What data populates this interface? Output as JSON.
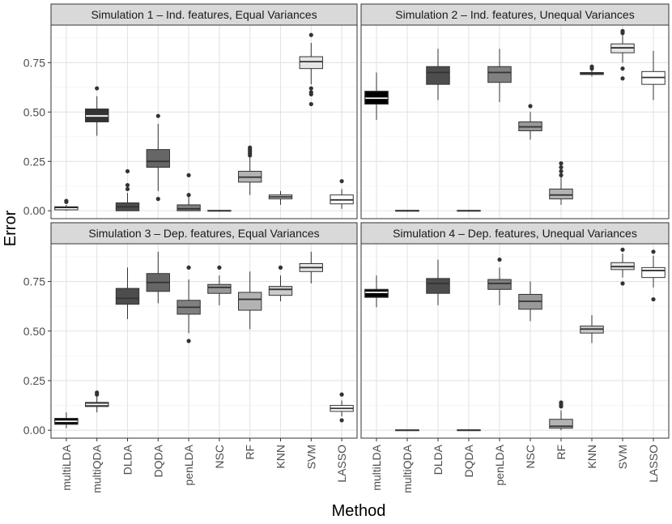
{
  "chart_data": {
    "type": "boxplot",
    "xlabel": "Method",
    "ylabel": "Error",
    "ylim": [
      -0.04,
      0.94
    ],
    "yticks": [
      0.0,
      0.25,
      0.5,
      0.75
    ],
    "ytick_labels": [
      "0.00",
      "0.25",
      "0.50",
      "0.75"
    ],
    "categories": [
      "multiLDA",
      "multiQDA",
      "DLDA",
      "DQDA",
      "penLDA",
      "NSC",
      "RF",
      "KNN",
      "SVM",
      "LASSO"
    ],
    "fills": [
      "#000000",
      "#333333",
      "#4d4d4d",
      "#666666",
      "#808080",
      "#999999",
      "#b3b3b3",
      "#cccccc",
      "#e6e6e6",
      "#ffffff"
    ],
    "panels": [
      {
        "title": "Simulation 1 – Ind. features, Equal Variances",
        "boxes": [
          {
            "method": "multiLDA",
            "q1": 0.005,
            "median": 0.01,
            "q3": 0.02,
            "whisker_low": 0.0,
            "whisker_high": 0.03,
            "outliers": [
              0.045,
              0.05
            ]
          },
          {
            "method": "multiQDA",
            "q1": 0.45,
            "median": 0.48,
            "q3": 0.515,
            "whisker_low": 0.38,
            "whisker_high": 0.58,
            "outliers": [
              0.62
            ]
          },
          {
            "method": "DLDA",
            "q1": 0.0,
            "median": 0.02,
            "q3": 0.04,
            "whisker_low": 0.0,
            "whisker_high": 0.09,
            "outliers": [
              0.11,
              0.13,
              0.2
            ]
          },
          {
            "method": "DQDA",
            "q1": 0.22,
            "median": 0.25,
            "q3": 0.31,
            "whisker_low": 0.1,
            "whisker_high": 0.44,
            "outliers": [
              0.06,
              0.48
            ]
          },
          {
            "method": "penLDA",
            "q1": 0.0,
            "median": 0.01,
            "q3": 0.03,
            "whisker_low": 0.0,
            "whisker_high": 0.07,
            "outliers": [
              0.08,
              0.18
            ]
          },
          {
            "method": "NSC",
            "q1": -0.002,
            "median": 0.0,
            "q3": 0.002,
            "whisker_low": -0.004,
            "whisker_high": 0.004,
            "outliers": []
          },
          {
            "method": "RF",
            "q1": 0.145,
            "median": 0.17,
            "q3": 0.2,
            "whisker_low": 0.08,
            "whisker_high": 0.27,
            "outliers": [
              0.28,
              0.29,
              0.3,
              0.31,
              0.32
            ]
          },
          {
            "method": "KNN",
            "q1": 0.06,
            "median": 0.07,
            "q3": 0.08,
            "whisker_low": 0.03,
            "whisker_high": 0.1,
            "outliers": []
          },
          {
            "method": "SVM",
            "q1": 0.72,
            "median": 0.755,
            "q3": 0.78,
            "whisker_low": 0.64,
            "whisker_high": 0.85,
            "outliers": [
              0.54,
              0.59,
              0.6,
              0.62,
              0.89
            ]
          },
          {
            "method": "LASSO",
            "q1": 0.035,
            "median": 0.055,
            "q3": 0.08,
            "whisker_low": 0.01,
            "whisker_high": 0.11,
            "outliers": [
              0.15
            ]
          }
        ]
      },
      {
        "title": "Simulation 2 – Ind. features, Unequal Variances",
        "boxes": [
          {
            "method": "multiLDA",
            "q1": 0.54,
            "median": 0.57,
            "q3": 0.605,
            "whisker_low": 0.46,
            "whisker_high": 0.7,
            "outliers": []
          },
          {
            "method": "multiQDA",
            "q1": -0.002,
            "median": 0.0,
            "q3": 0.002,
            "whisker_low": -0.004,
            "whisker_high": 0.004,
            "outliers": []
          },
          {
            "method": "DLDA",
            "q1": 0.64,
            "median": 0.7,
            "q3": 0.73,
            "whisker_low": 0.56,
            "whisker_high": 0.82,
            "outliers": []
          },
          {
            "method": "DQDA",
            "q1": -0.002,
            "median": 0.0,
            "q3": 0.002,
            "whisker_low": -0.004,
            "whisker_high": 0.004,
            "outliers": []
          },
          {
            "method": "penLDA",
            "q1": 0.65,
            "median": 0.7,
            "q3": 0.73,
            "whisker_low": 0.55,
            "whisker_high": 0.82,
            "outliers": []
          },
          {
            "method": "NSC",
            "q1": 0.405,
            "median": 0.425,
            "q3": 0.45,
            "whisker_low": 0.36,
            "whisker_high": 0.5,
            "outliers": [
              0.53
            ]
          },
          {
            "method": "RF",
            "q1": 0.06,
            "median": 0.08,
            "q3": 0.11,
            "whisker_low": 0.03,
            "whisker_high": 0.17,
            "outliers": [
              0.18,
              0.2,
              0.22,
              0.24
            ]
          },
          {
            "method": "KNN",
            "q1": 0.69,
            "median": 0.695,
            "q3": 0.7,
            "whisker_low": 0.68,
            "whisker_high": 0.71,
            "outliers": [
              0.72,
              0.73
            ]
          },
          {
            "method": "SVM",
            "q1": 0.8,
            "median": 0.825,
            "q3": 0.845,
            "whisker_low": 0.75,
            "whisker_high": 0.89,
            "outliers": [
              0.67,
              0.72,
              0.9,
              0.91
            ]
          },
          {
            "method": "LASSO",
            "q1": 0.64,
            "median": 0.675,
            "q3": 0.705,
            "whisker_low": 0.56,
            "whisker_high": 0.81,
            "outliers": []
          }
        ]
      },
      {
        "title": "Simulation 3 – Dep. features, Equal Variances",
        "boxes": [
          {
            "method": "multiLDA",
            "q1": 0.03,
            "median": 0.045,
            "q3": 0.06,
            "whisker_low": 0.01,
            "whisker_high": 0.09,
            "outliers": []
          },
          {
            "method": "multiQDA",
            "q1": 0.12,
            "median": 0.13,
            "q3": 0.14,
            "whisker_low": 0.09,
            "whisker_high": 0.17,
            "outliers": [
              0.18,
              0.19
            ]
          },
          {
            "method": "DLDA",
            "q1": 0.635,
            "median": 0.665,
            "q3": 0.715,
            "whisker_low": 0.56,
            "whisker_high": 0.82,
            "outliers": []
          },
          {
            "method": "DQDA",
            "q1": 0.7,
            "median": 0.745,
            "q3": 0.79,
            "whisker_low": 0.64,
            "whisker_high": 0.9,
            "outliers": []
          },
          {
            "method": "penLDA",
            "q1": 0.585,
            "median": 0.62,
            "q3": 0.655,
            "whisker_low": 0.49,
            "whisker_high": 0.76,
            "outliers": [
              0.45,
              0.82
            ]
          },
          {
            "method": "NSC",
            "q1": 0.69,
            "median": 0.72,
            "q3": 0.735,
            "whisker_low": 0.63,
            "whisker_high": 0.78,
            "outliers": [
              0.82
            ]
          },
          {
            "method": "RF",
            "q1": 0.605,
            "median": 0.66,
            "q3": 0.695,
            "whisker_low": 0.51,
            "whisker_high": 0.8,
            "outliers": []
          },
          {
            "method": "KNN",
            "q1": 0.68,
            "median": 0.71,
            "q3": 0.725,
            "whisker_low": 0.65,
            "whisker_high": 0.78,
            "outliers": [
              0.82
            ]
          },
          {
            "method": "SVM",
            "q1": 0.8,
            "median": 0.82,
            "q3": 0.84,
            "whisker_low": 0.74,
            "whisker_high": 0.9,
            "outliers": []
          },
          {
            "method": "LASSO",
            "q1": 0.095,
            "median": 0.11,
            "q3": 0.125,
            "whisker_low": 0.07,
            "whisker_high": 0.15,
            "outliers": [
              0.05,
              0.18
            ]
          }
        ]
      },
      {
        "title": "Simulation 4 – Dep. features, Unequal Variances",
        "boxes": [
          {
            "method": "multiLDA",
            "q1": 0.67,
            "median": 0.695,
            "q3": 0.71,
            "whisker_low": 0.62,
            "whisker_high": 0.78,
            "outliers": []
          },
          {
            "method": "multiQDA",
            "q1": -0.002,
            "median": 0.0,
            "q3": 0.002,
            "whisker_low": -0.004,
            "whisker_high": 0.004,
            "outliers": []
          },
          {
            "method": "DLDA",
            "q1": 0.69,
            "median": 0.74,
            "q3": 0.765,
            "whisker_low": 0.63,
            "whisker_high": 0.86,
            "outliers": []
          },
          {
            "method": "DQDA",
            "q1": -0.002,
            "median": 0.0,
            "q3": 0.002,
            "whisker_low": -0.004,
            "whisker_high": 0.004,
            "outliers": []
          },
          {
            "method": "penLDA",
            "q1": 0.71,
            "median": 0.74,
            "q3": 0.76,
            "whisker_low": 0.63,
            "whisker_high": 0.82,
            "outliers": [
              0.86
            ]
          },
          {
            "method": "NSC",
            "q1": 0.61,
            "median": 0.65,
            "q3": 0.685,
            "whisker_low": 0.55,
            "whisker_high": 0.75,
            "outliers": []
          },
          {
            "method": "RF",
            "q1": 0.01,
            "median": 0.02,
            "q3": 0.055,
            "whisker_low": 0.0,
            "whisker_high": 0.1,
            "outliers": [
              0.12,
              0.13,
              0.14
            ]
          },
          {
            "method": "KNN",
            "q1": 0.49,
            "median": 0.51,
            "q3": 0.525,
            "whisker_low": 0.44,
            "whisker_high": 0.58,
            "outliers": []
          },
          {
            "method": "SVM",
            "q1": 0.81,
            "median": 0.825,
            "q3": 0.845,
            "whisker_low": 0.77,
            "whisker_high": 0.89,
            "outliers": [
              0.74,
              0.91
            ]
          },
          {
            "method": "LASSO",
            "q1": 0.77,
            "median": 0.805,
            "q3": 0.82,
            "whisker_low": 0.72,
            "whisker_high": 0.88,
            "outliers": [
              0.66,
              0.9
            ]
          }
        ]
      }
    ]
  }
}
